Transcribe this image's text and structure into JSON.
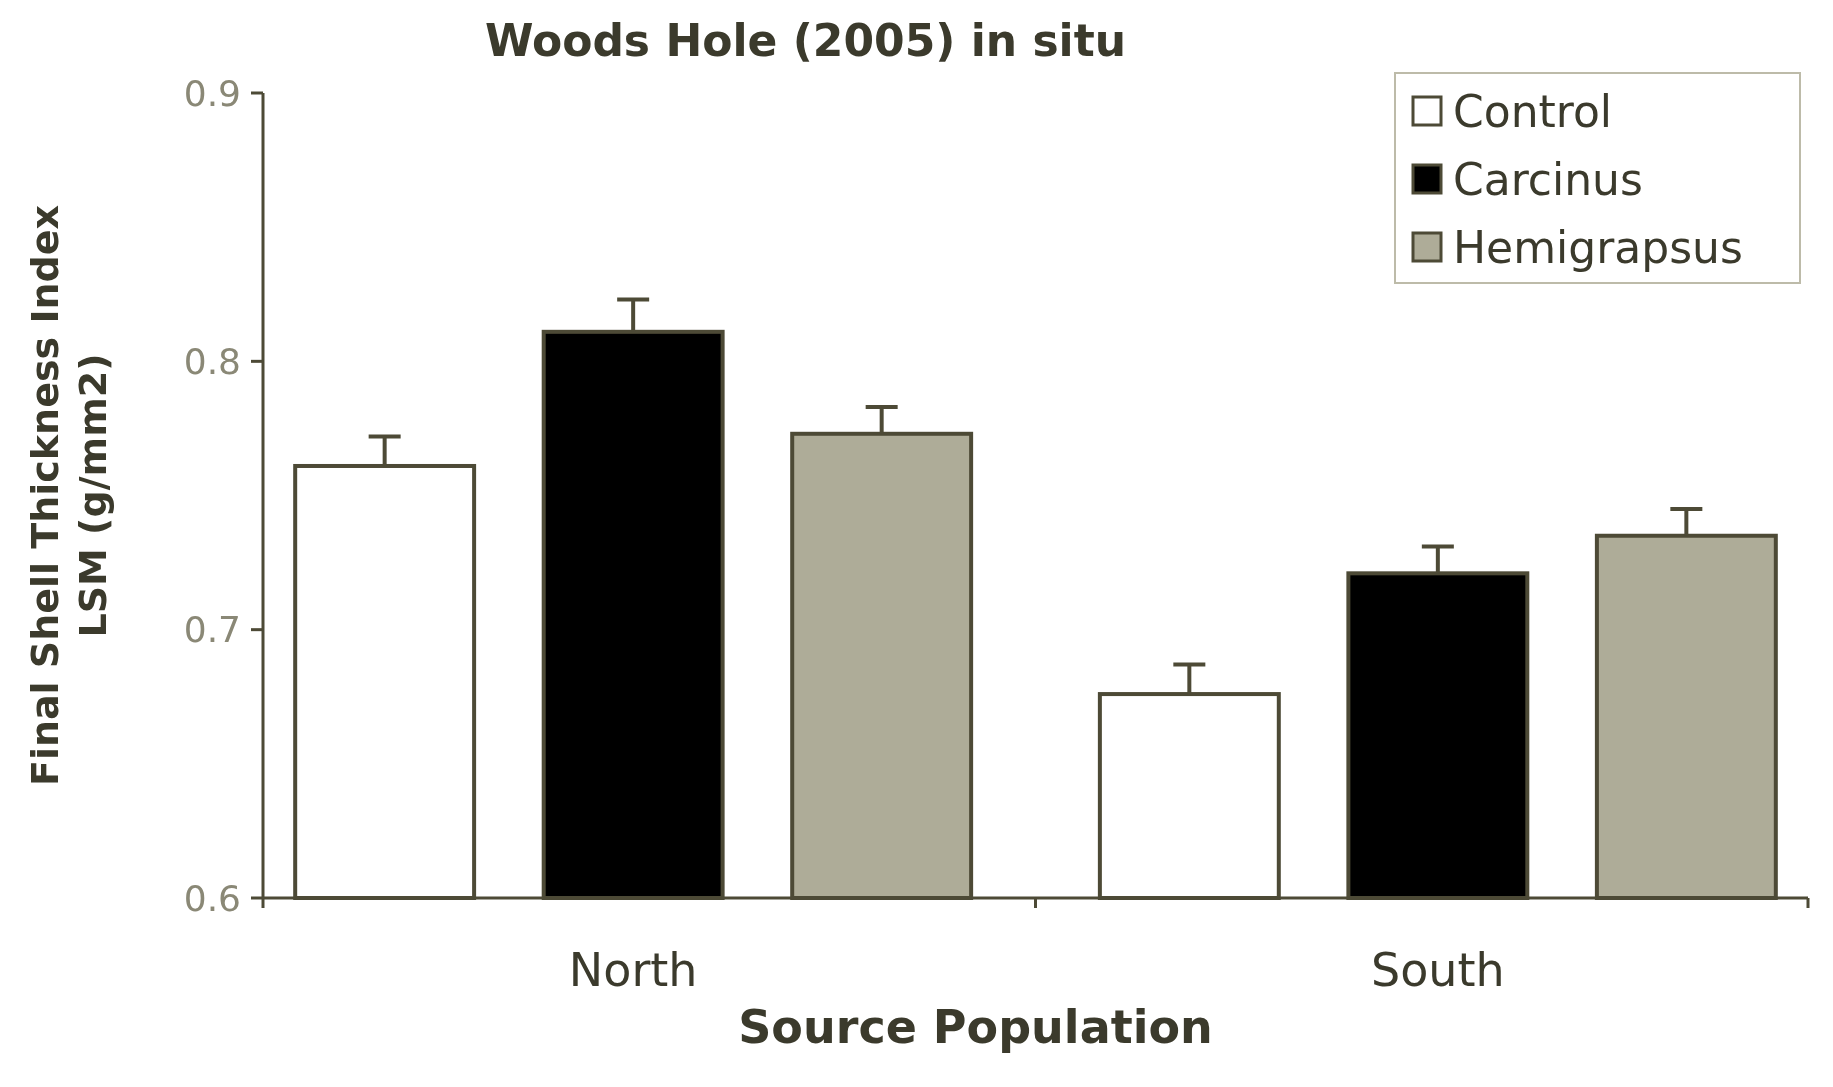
{
  "chart_data": {
    "type": "bar",
    "title": "Woods Hole (2005) in situ",
    "xlabel": "Source Population",
    "ylabel": "Final Shell Thickness Index\nLSM (g/mm2)",
    "categories": [
      "North",
      "South"
    ],
    "series": [
      {
        "name": "Control",
        "color": "#ffffff",
        "values": [
          0.761,
          0.676
        ],
        "errors": [
          [
            0.761,
            0.772
          ],
          [
            0.676,
            0.687
          ]
        ]
      },
      {
        "name": "Carcinus",
        "color": "#000000",
        "values": [
          0.811,
          0.721
        ],
        "errors": [
          [
            0.811,
            0.823
          ],
          [
            0.721,
            0.731
          ]
        ]
      },
      {
        "name": "Hemigrapsus",
        "color": "#aeac98",
        "values": [
          0.773,
          0.735
        ],
        "errors": [
          [
            0.773,
            0.783
          ],
          [
            0.735,
            0.745
          ]
        ]
      }
    ],
    "ylim": [
      0.6,
      0.9
    ],
    "yticks": [
      0.6,
      0.7,
      0.8,
      0.9
    ],
    "grid": false,
    "legend": "top right"
  }
}
